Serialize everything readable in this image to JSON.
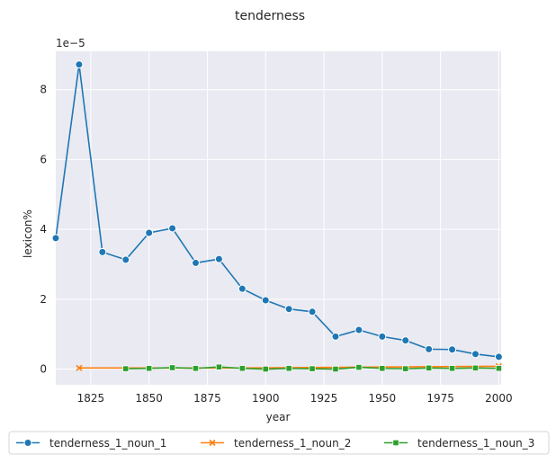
{
  "chart_data": {
    "type": "line",
    "title": "tenderness",
    "xlabel": "year",
    "ylabel": "lexicon%",
    "y_multiplier_label": "1e−5",
    "xlim": [
      1810,
      2001
    ],
    "ylim": [
      -0.45,
      9.1
    ],
    "x_ticks": [
      1825,
      1850,
      1875,
      1900,
      1925,
      1950,
      1975,
      2000
    ],
    "y_ticks": [
      0,
      2,
      4,
      6,
      8
    ],
    "grid": true,
    "legend_placement": "bottom-center",
    "series": [
      {
        "name": "tenderness_1_noun_1",
        "color": "#1f77b4",
        "marker": "circle",
        "x": [
          1810,
          1820,
          1830,
          1840,
          1850,
          1860,
          1870,
          1880,
          1890,
          1900,
          1910,
          1920,
          1930,
          1940,
          1950,
          1960,
          1970,
          1980,
          1990,
          2000
        ],
        "y": [
          3.75,
          8.72,
          3.35,
          3.13,
          3.9,
          4.03,
          3.04,
          3.15,
          2.3,
          1.97,
          1.72,
          1.64,
          0.93,
          1.12,
          0.93,
          0.82,
          0.57,
          0.56,
          0.43,
          0.35
        ]
      },
      {
        "name": "tenderness_1_noun_2",
        "color": "#ff7f0e",
        "marker": "x",
        "x": [
          1820,
          1890,
          2000
        ],
        "y": [
          0.03,
          0.03,
          0.08
        ]
      },
      {
        "name": "tenderness_1_noun_3",
        "color": "#2ca02c",
        "marker": "square",
        "x": [
          1840,
          1850,
          1860,
          1870,
          1880,
          1890,
          1900,
          1910,
          1920,
          1930,
          1940,
          1950,
          1960,
          1970,
          1980,
          1990,
          2000
        ],
        "y": [
          0.01,
          0.02,
          0.04,
          0.02,
          0.06,
          0.02,
          0.0,
          0.02,
          0.01,
          0.0,
          0.05,
          0.02,
          0.01,
          0.03,
          0.02,
          0.03,
          0.02
        ]
      }
    ]
  }
}
